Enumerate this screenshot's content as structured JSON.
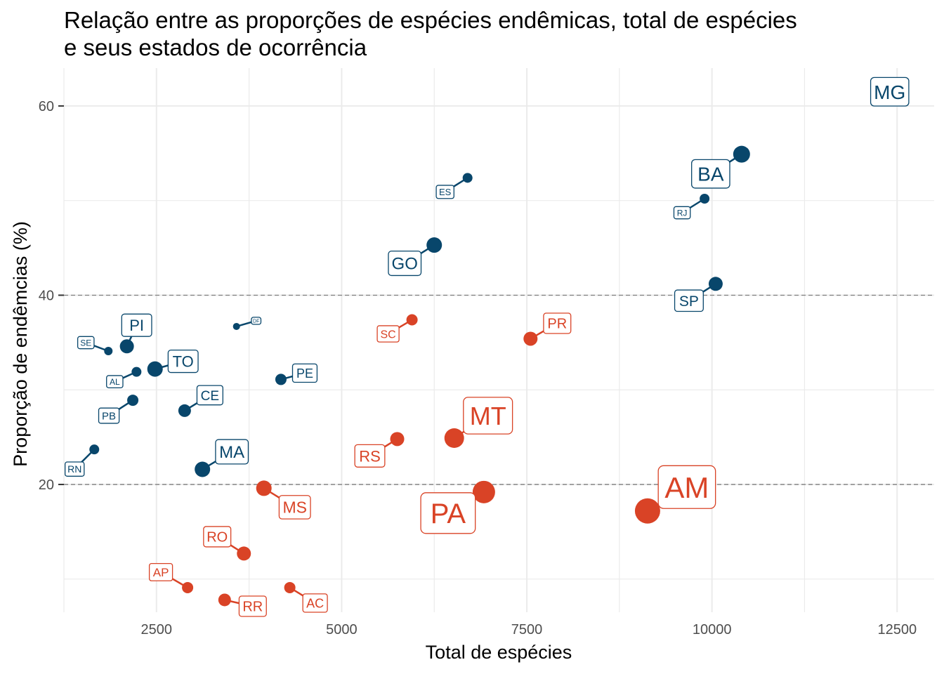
{
  "chart_data": {
    "type": "scatter",
    "title": [
      "Relação entre as proporções de espécies endêmicas, total de espécies",
      "e seus estados de ocorrência"
    ],
    "xlabel": "Total de espécies",
    "ylabel": "Proporção de endêmcias (%)",
    "xlim": [
      1250,
      13000
    ],
    "ylim": [
      6.5,
      64
    ],
    "x_ticks": [
      2500,
      5000,
      7500,
      10000,
      12500
    ],
    "y_ticks": [
      20,
      40,
      60
    ],
    "reference_lines": [
      20,
      40
    ],
    "grid": true,
    "colors": {
      "group_high": "#08466b",
      "group_low": "#d94326",
      "reference_line": "#808080",
      "grid": "#ebebeb"
    },
    "points": [
      {
        "label": "MG",
        "x": 12400,
        "y": 61.5,
        "color": "#08466b",
        "size": 3,
        "font": 28
      },
      {
        "label": "BA",
        "x": 10400,
        "y": 54.9,
        "color": "#08466b",
        "size": 12,
        "font": 28
      },
      {
        "label": "RJ",
        "x": 9900,
        "y": 50.2,
        "color": "#08466b",
        "size": 7,
        "font": 12
      },
      {
        "label": "SP",
        "x": 10050,
        "y": 41.2,
        "color": "#08466b",
        "size": 10,
        "font": 21
      },
      {
        "label": "ES",
        "x": 6700,
        "y": 52.4,
        "color": "#08466b",
        "size": 7,
        "font": 13
      },
      {
        "label": "GO",
        "x": 6250,
        "y": 45.3,
        "color": "#08466b",
        "size": 11,
        "font": 24
      },
      {
        "label": "DF",
        "x": 3580,
        "y": 36.7,
        "color": "#08466b",
        "size": 5,
        "font": 7
      },
      {
        "label": "PI",
        "x": 2100,
        "y": 34.6,
        "color": "#08466b",
        "size": 10,
        "font": 22
      },
      {
        "label": "SE",
        "x": 1850,
        "y": 34.1,
        "color": "#08466b",
        "size": 6,
        "font": 12
      },
      {
        "label": "TO",
        "x": 2480,
        "y": 32.2,
        "color": "#08466b",
        "size": 11,
        "font": 22
      },
      {
        "label": "AL",
        "x": 2230,
        "y": 31.9,
        "color": "#08466b",
        "size": 7,
        "font": 12
      },
      {
        "label": "PE",
        "x": 4180,
        "y": 31.1,
        "color": "#08466b",
        "size": 8,
        "font": 18
      },
      {
        "label": "PB",
        "x": 2180,
        "y": 28.9,
        "color": "#08466b",
        "size": 8,
        "font": 15
      },
      {
        "label": "CE",
        "x": 2880,
        "y": 27.8,
        "color": "#08466b",
        "size": 9,
        "font": 19
      },
      {
        "label": "RN",
        "x": 1660,
        "y": 23.7,
        "color": "#08466b",
        "size": 7,
        "font": 14
      },
      {
        "label": "MA",
        "x": 3120,
        "y": 21.6,
        "color": "#08466b",
        "size": 11,
        "font": 24
      },
      {
        "label": "SC",
        "x": 5950,
        "y": 37.4,
        "color": "#d94326",
        "size": 8,
        "font": 16
      },
      {
        "label": "PR",
        "x": 7550,
        "y": 35.4,
        "color": "#d94326",
        "size": 10,
        "font": 20
      },
      {
        "label": "MT",
        "x": 6520,
        "y": 24.9,
        "color": "#d94326",
        "size": 14,
        "font": 36
      },
      {
        "label": "RS",
        "x": 5750,
        "y": 24.8,
        "color": "#d94326",
        "size": 10,
        "font": 22
      },
      {
        "label": "PA",
        "x": 6920,
        "y": 19.2,
        "color": "#d94326",
        "size": 16,
        "font": 40
      },
      {
        "label": "AM",
        "x": 9130,
        "y": 17.2,
        "color": "#d94326",
        "size": 18,
        "font": 42
      },
      {
        "label": "MS",
        "x": 3950,
        "y": 19.6,
        "color": "#d94326",
        "size": 11,
        "font": 23
      },
      {
        "label": "RO",
        "x": 3680,
        "y": 12.7,
        "color": "#d94326",
        "size": 10,
        "font": 20
      },
      {
        "label": "AP",
        "x": 2920,
        "y": 9.1,
        "color": "#d94326",
        "size": 8,
        "font": 17
      },
      {
        "label": "RR",
        "x": 3420,
        "y": 7.8,
        "color": "#d94326",
        "size": 9,
        "font": 20
      },
      {
        "label": "AC",
        "x": 4300,
        "y": 9.1,
        "color": "#d94326",
        "size": 8,
        "font": 18
      }
    ]
  }
}
